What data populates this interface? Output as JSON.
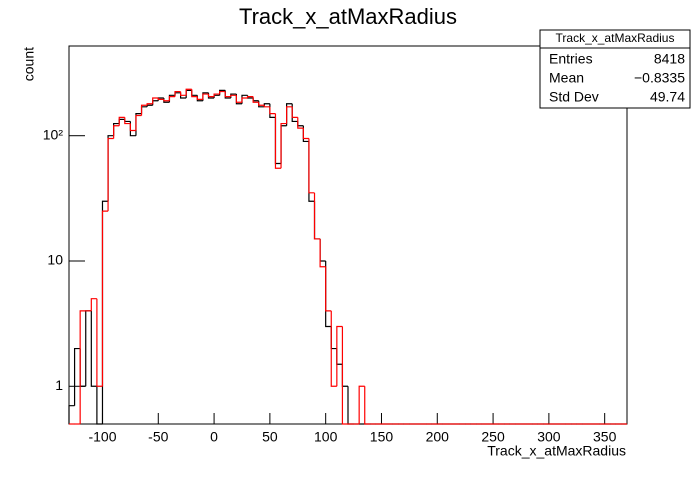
{
  "chart_data": {
    "type": "histogram",
    "title": "Track_x_atMaxRadius",
    "x_label": "Track_x_atMaxRadius",
    "y_label": "count",
    "log_y": true,
    "xlim": [
      -130,
      370
    ],
    "ylim": [
      0.5,
      520
    ],
    "xticks": [
      -100,
      -50,
      0,
      50,
      100,
      150,
      200,
      250,
      300,
      350
    ],
    "yticks": [
      1,
      10,
      {
        "value": 100,
        "label": "10²"
      }
    ],
    "bins": [
      -130,
      -125,
      -120,
      -115,
      -110,
      -105,
      -100,
      -95,
      -90,
      -85,
      -80,
      -75,
      -70,
      -65,
      -60,
      -55,
      -50,
      -45,
      -40,
      -35,
      -30,
      -25,
      -20,
      -15,
      -10,
      -5,
      0,
      5,
      10,
      15,
      20,
      25,
      30,
      35,
      40,
      45,
      50,
      55,
      60,
      65,
      70,
      75,
      80,
      85,
      90,
      95,
      100,
      105,
      110,
      115,
      120,
      125,
      130,
      135,
      140,
      145,
      150,
      155,
      160,
      165,
      170,
      175,
      180,
      185,
      190,
      195,
      200,
      205,
      210,
      215,
      220,
      225,
      230,
      235,
      240,
      245,
      250,
      255,
      260,
      265,
      270,
      275,
      280,
      285,
      290,
      295,
      300,
      305,
      310,
      315,
      320,
      325,
      330,
      335,
      340,
      345,
      350,
      355,
      360,
      365,
      370
    ],
    "series": [
      {
        "name": "black",
        "color": "#000000",
        "values": [
          0.7,
          2,
          1,
          4,
          1,
          0,
          30,
          100,
          125,
          135,
          130,
          100,
          150,
          170,
          175,
          190,
          200,
          185,
          210,
          220,
          200,
          230,
          210,
          190,
          220,
          200,
          210,
          230,
          200,
          215,
          180,
          210,
          200,
          190,
          170,
          180,
          140,
          60,
          120,
          180,
          130,
          120,
          90,
          30,
          15,
          10,
          3,
          2,
          1.5,
          1,
          0,
          0,
          0,
          0,
          0,
          0,
          0,
          0,
          0,
          0,
          0,
          0,
          0,
          0,
          0,
          0,
          0,
          0,
          0,
          0,
          0,
          0,
          0,
          0,
          0,
          0,
          0,
          0,
          0,
          0,
          0,
          0,
          0,
          0,
          0,
          0,
          0,
          0,
          0,
          0,
          0,
          0,
          0,
          0,
          0,
          0,
          0,
          0,
          0,
          0
        ]
      },
      {
        "name": "red",
        "color": "#ff0000",
        "values": [
          0,
          0,
          4,
          4,
          5,
          1,
          25,
          95,
          120,
          140,
          125,
          110,
          145,
          175,
          180,
          200,
          195,
          190,
          205,
          225,
          210,
          235,
          205,
          195,
          215,
          205,
          215,
          225,
          205,
          210,
          185,
          200,
          205,
          185,
          175,
          170,
          150,
          55,
          125,
          170,
          140,
          115,
          95,
          35,
          15,
          9,
          4,
          1,
          3,
          0,
          0,
          0,
          1,
          0,
          0,
          0,
          0,
          0,
          0,
          0,
          0,
          0,
          0,
          0,
          0,
          0,
          0,
          0,
          0,
          0,
          0,
          0,
          0,
          0,
          0,
          0,
          0,
          0,
          0,
          0,
          0,
          0,
          0,
          0,
          0,
          0,
          0,
          0,
          0,
          0,
          0,
          0,
          0,
          0,
          0,
          0,
          0,
          0,
          0,
          0
        ]
      }
    ],
    "stats": {
      "title": "Track_x_atMaxRadius",
      "rows": [
        {
          "label": "Entries",
          "value": "8418"
        },
        {
          "label": "Mean",
          "value": "−0.8335"
        },
        {
          "label": "Std Dev",
          "value": "49.74"
        }
      ]
    }
  }
}
